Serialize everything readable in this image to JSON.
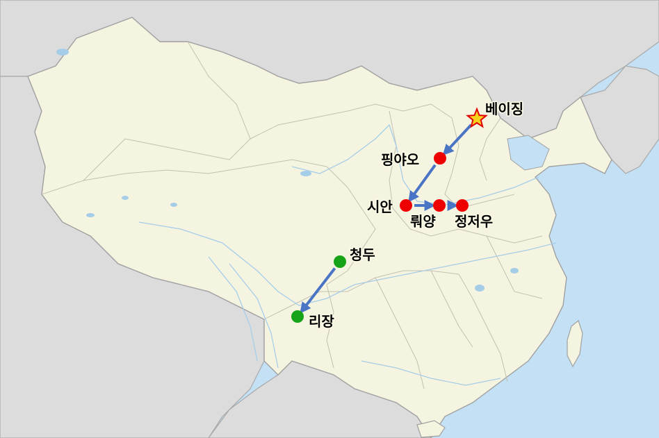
{
  "colors": {
    "sea": "#c3e0f5",
    "china_land": "#f5f4e1",
    "neighbor_land": "#dcdcdc",
    "route_arrow": "#4a74c4",
    "marker_red": "#ee0000",
    "marker_green": "#17a317",
    "star_fill": "#f7d11c",
    "star_stroke": "#e00000"
  },
  "map": {
    "icons": {
      "capital": "star-icon",
      "stop": "circle-marker-icon"
    },
    "cities": [
      {
        "id": "beijing",
        "name": "베이징",
        "marker": "star",
        "color": "red"
      },
      {
        "id": "pingyao",
        "name": "핑야오",
        "marker": "dot",
        "color": "red"
      },
      {
        "id": "xian",
        "name": "시안",
        "marker": "dot",
        "color": "red"
      },
      {
        "id": "luoyang",
        "name": "뤄양",
        "marker": "dot",
        "color": "red"
      },
      {
        "id": "zhengzhou",
        "name": "정저우",
        "marker": "dot",
        "color": "red"
      },
      {
        "id": "chengdu",
        "name": "청두",
        "marker": "dot",
        "color": "green"
      },
      {
        "id": "lijiang",
        "name": "리장",
        "marker": "dot",
        "color": "green"
      }
    ],
    "routes": [
      {
        "from": "beijing",
        "to": "pingyao"
      },
      {
        "from": "pingyao",
        "to": "xian"
      },
      {
        "from": "xian",
        "to": "luoyang"
      },
      {
        "from": "luoyang",
        "to": "zhengzhou"
      },
      {
        "from": "chengdu",
        "to": "lijiang"
      }
    ]
  }
}
